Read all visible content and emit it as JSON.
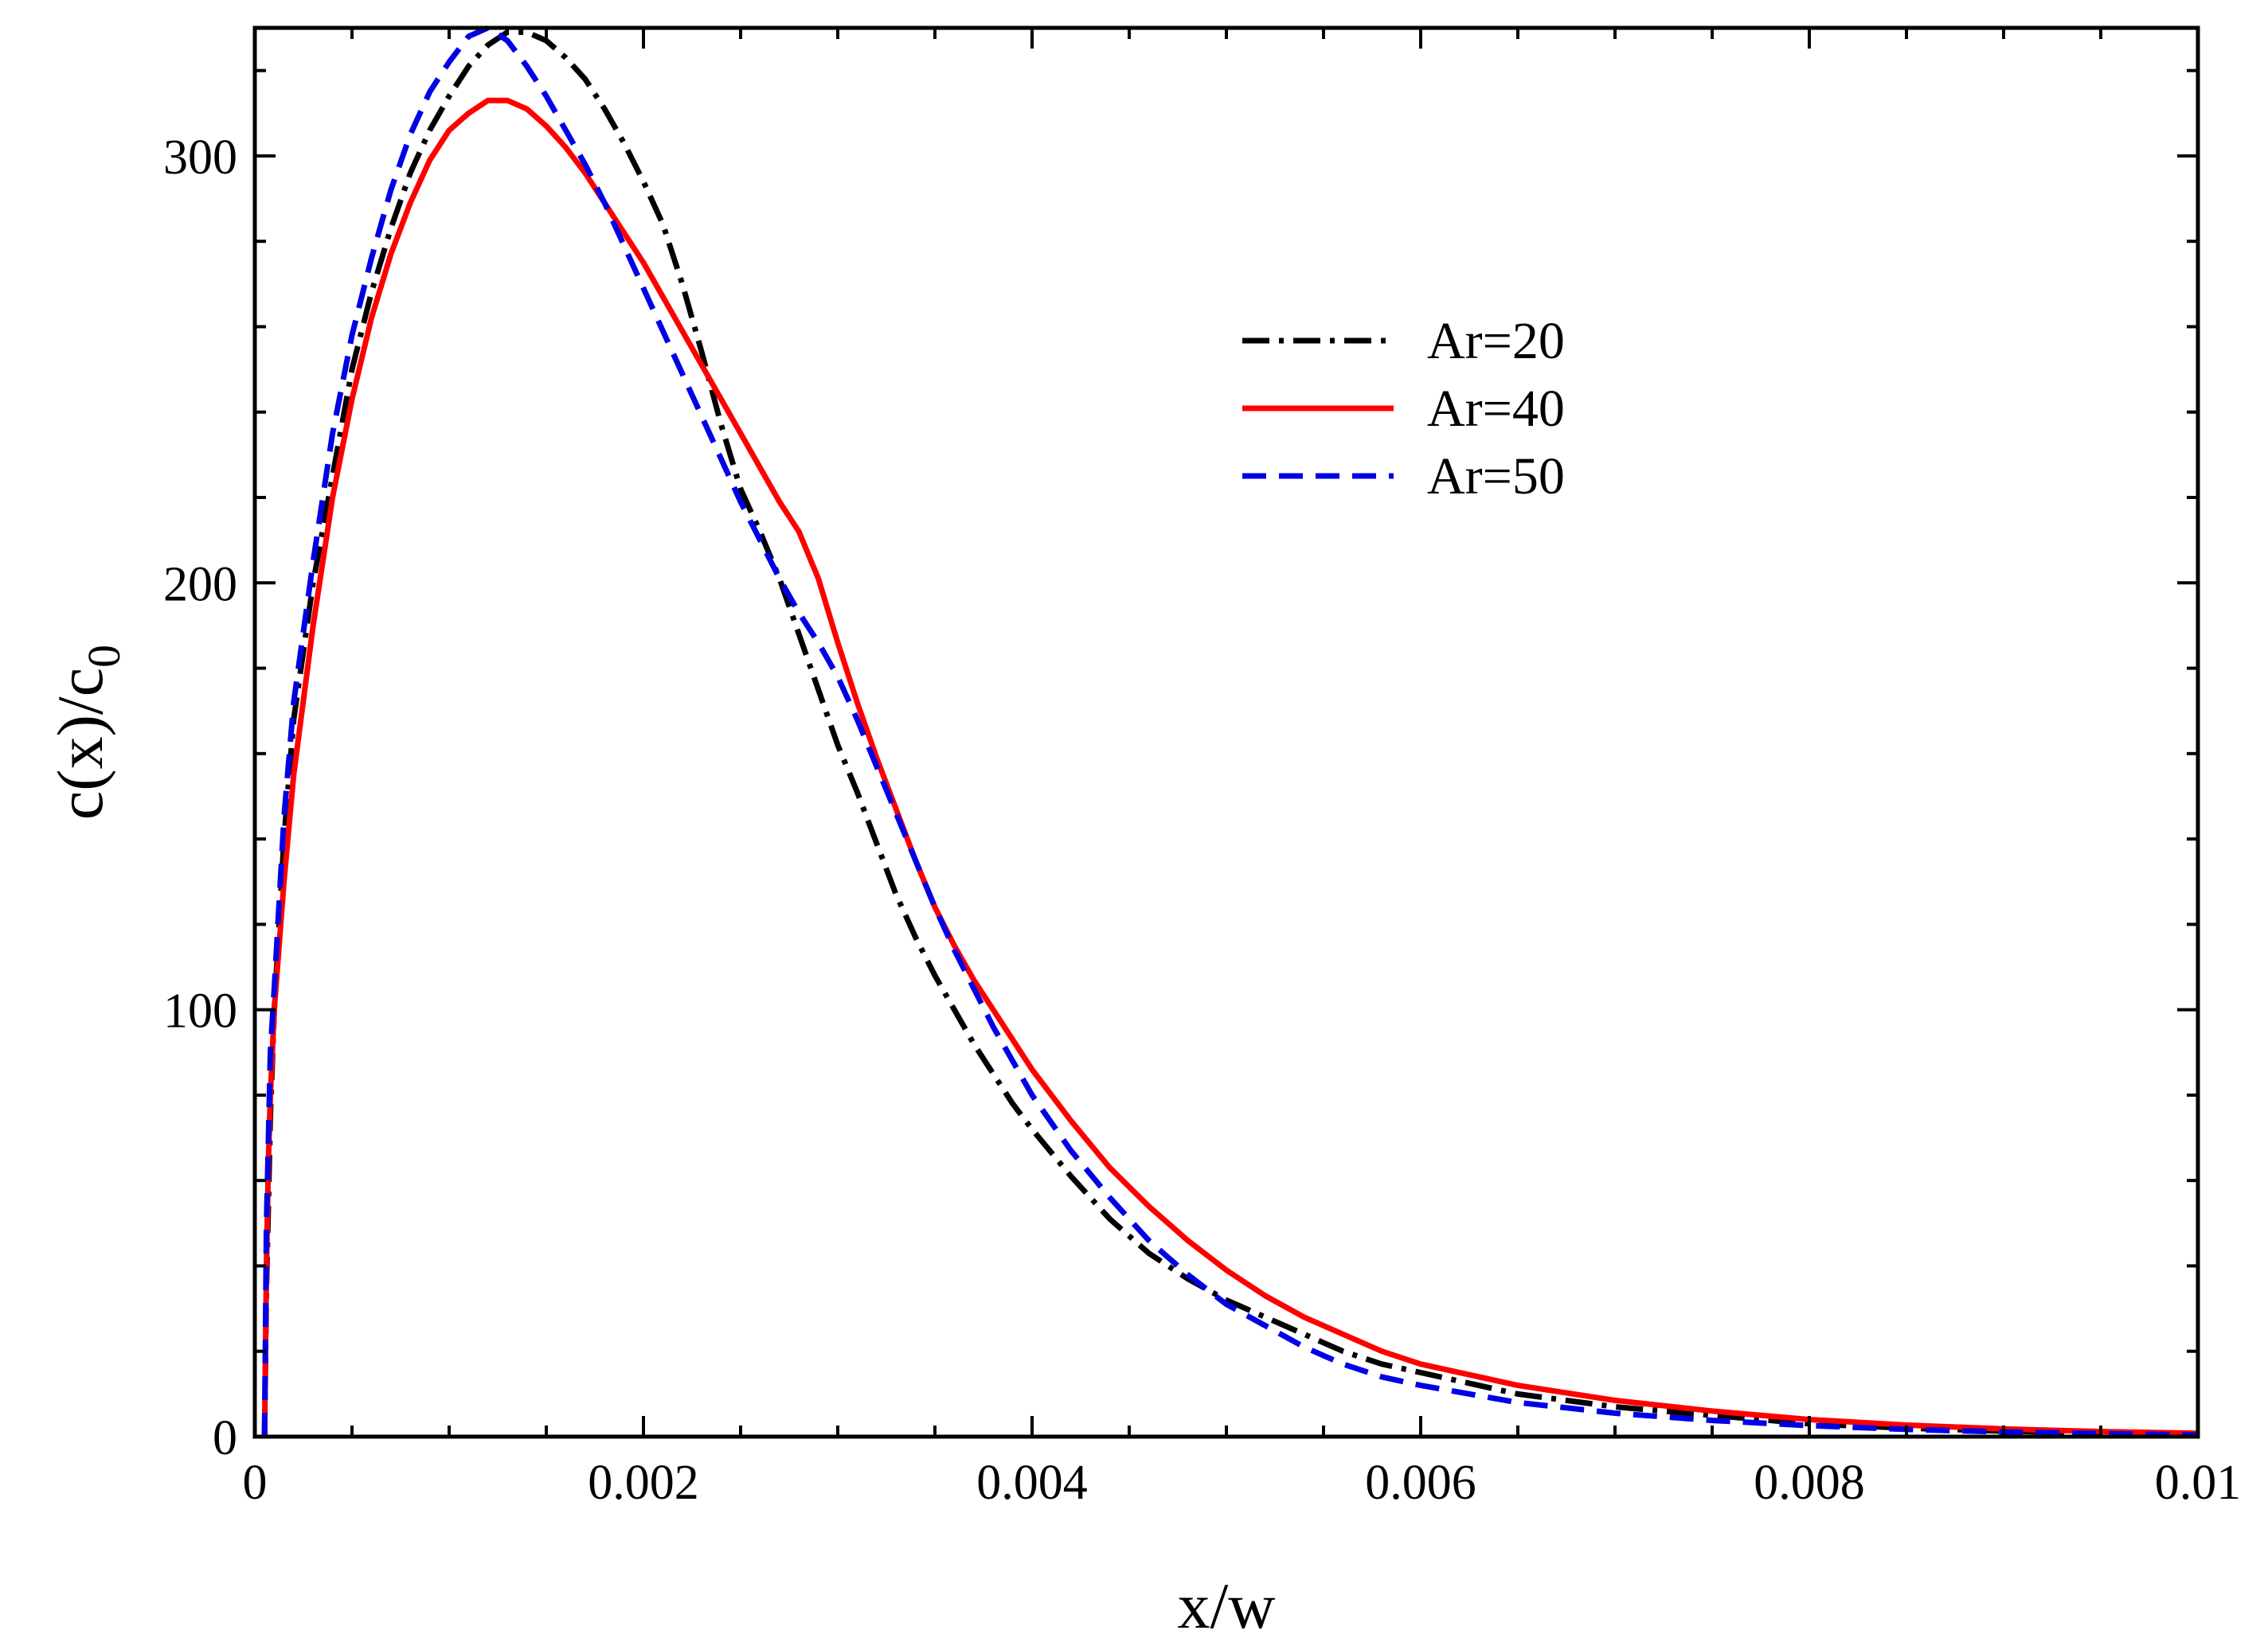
{
  "chart_data": {
    "type": "line",
    "title": "",
    "xlabel": "x/w",
    "ylabel_main": "c(x)/c",
    "ylabel_sub": "0",
    "xlim": [
      0,
      0.01
    ],
    "ylim": [
      0,
      330
    ],
    "x_ticks": [
      0,
      0.002,
      0.004,
      0.006,
      0.008,
      0.01
    ],
    "x_tick_labels": [
      "0",
      "0.002",
      "0.004",
      "0.006",
      "0.008",
      "0.01"
    ],
    "y_ticks": [
      0,
      100,
      200,
      300
    ],
    "y_tick_labels": [
      "0",
      "100",
      "200",
      "300"
    ],
    "x_minor_step": 0.0005,
    "y_minor_step": 20,
    "grid": false,
    "legend_position": "upper-right-center",
    "series": [
      {
        "name": "Ar=20",
        "color": "#000000",
        "style": "dashdot",
        "x": [
          5e-05,
          6e-05,
          7e-05,
          8e-05,
          0.0001,
          0.00015,
          0.0002,
          0.0003,
          0.0004,
          0.0005,
          0.0006,
          0.0007,
          0.0008,
          0.0009,
          0.001,
          0.0011,
          0.0012,
          0.0013,
          0.0014,
          0.0015,
          0.0016,
          0.0017,
          0.0018,
          0.0019,
          0.002,
          0.0021,
          0.0022,
          0.0023,
          0.0024,
          0.0025,
          0.0026,
          0.0027,
          0.0028,
          0.0029,
          0.003,
          0.0031,
          0.0032,
          0.0033,
          0.0034,
          0.0035,
          0.0036,
          0.0037,
          0.0038,
          0.0039,
          0.004,
          0.0042,
          0.0044,
          0.0046,
          0.0048,
          0.005,
          0.0052,
          0.0054,
          0.0056,
          0.0058,
          0.006,
          0.0065,
          0.007,
          0.0075,
          0.008,
          0.0085,
          0.009,
          0.0095,
          0.01
        ],
        "values": [
          0,
          35,
          55,
          75,
          100,
          140,
          168,
          200,
          225,
          250,
          268,
          283,
          296,
          306,
          314,
          321,
          326,
          329,
          329,
          327,
          323,
          318,
          311,
          303,
          294,
          284,
          270,
          254,
          237,
          222,
          212,
          201,
          188,
          175,
          162,
          151,
          139,
          127,
          117,
          108,
          100,
          92,
          85,
          78,
          72,
          61,
          51,
          43,
          37,
          32,
          28,
          24,
          20,
          17,
          15,
          10,
          7,
          5,
          3,
          2,
          1.3,
          0.8,
          0.5
        ]
      },
      {
        "name": "Ar=40",
        "color": "#ff0000",
        "style": "solid",
        "x": [
          5e-05,
          6e-05,
          7e-05,
          8e-05,
          0.0001,
          0.00015,
          0.0002,
          0.0003,
          0.0004,
          0.0005,
          0.0006,
          0.0007,
          0.0008,
          0.0009,
          0.001,
          0.0011,
          0.0012,
          0.0013,
          0.0014,
          0.0015,
          0.0016,
          0.0017,
          0.0018,
          0.0019,
          0.002,
          0.0021,
          0.0022,
          0.0023,
          0.0024,
          0.0025,
          0.0026,
          0.0027,
          0.0028,
          0.0029,
          0.003,
          0.0031,
          0.0032,
          0.0033,
          0.0034,
          0.0035,
          0.0036,
          0.0037,
          0.0038,
          0.0039,
          0.004,
          0.0042,
          0.0044,
          0.0046,
          0.0048,
          0.005,
          0.0052,
          0.0054,
          0.0056,
          0.0058,
          0.006,
          0.0065,
          0.007,
          0.0075,
          0.008,
          0.0085,
          0.009,
          0.0095,
          0.01
        ],
        "values": [
          0,
          40,
          65,
          80,
          100,
          130,
          155,
          190,
          220,
          243,
          262,
          277,
          289,
          299,
          306,
          310,
          313,
          313,
          311,
          307,
          302,
          296,
          289,
          282,
          275,
          267,
          259,
          251,
          243,
          235,
          227,
          219,
          212,
          201,
          186,
          172,
          159,
          147,
          135,
          124,
          115,
          107,
          100,
          93,
          86,
          74,
          63,
          54,
          46,
          39,
          33,
          28,
          24,
          20,
          17,
          12,
          8.5,
          6,
          4,
          2.7,
          1.8,
          1.2,
          0.8
        ]
      },
      {
        "name": "Ar=50",
        "color": "#0000e6",
        "style": "dashed",
        "x": [
          5e-05,
          6e-05,
          7e-05,
          8e-05,
          0.0001,
          0.00015,
          0.0002,
          0.0003,
          0.0004,
          0.0005,
          0.0006,
          0.0007,
          0.0008,
          0.0009,
          0.001,
          0.0011,
          0.0012,
          0.0013,
          0.0014,
          0.0015,
          0.0016,
          0.0017,
          0.0018,
          0.0019,
          0.002,
          0.0021,
          0.0022,
          0.0023,
          0.0024,
          0.0025,
          0.0026,
          0.0027,
          0.0028,
          0.0029,
          0.003,
          0.0031,
          0.0032,
          0.0033,
          0.0034,
          0.0035,
          0.0036,
          0.0037,
          0.0038,
          0.0039,
          0.004,
          0.0042,
          0.0044,
          0.0046,
          0.0048,
          0.005,
          0.0052,
          0.0054,
          0.0056,
          0.0058,
          0.006,
          0.0065,
          0.007,
          0.0075,
          0.008,
          0.0085,
          0.009,
          0.0095,
          0.01
        ],
        "values": [
          0,
          50,
          70,
          90,
          105,
          145,
          172,
          205,
          235,
          258,
          276,
          292,
          305,
          315,
          322,
          328,
          330,
          327,
          321,
          314,
          306,
          298,
          289,
          279,
          269,
          259,
          249,
          239,
          229,
          219,
          210,
          201,
          193,
          186,
          178,
          168,
          157,
          146,
          135,
          124,
          114,
          105,
          96,
          88,
          80,
          67,
          56,
          46,
          38,
          31,
          26,
          21,
          17,
          14,
          12,
          8,
          5.5,
          3.8,
          2.6,
          1.7,
          1.1,
          0.7,
          0.4
        ]
      }
    ]
  }
}
